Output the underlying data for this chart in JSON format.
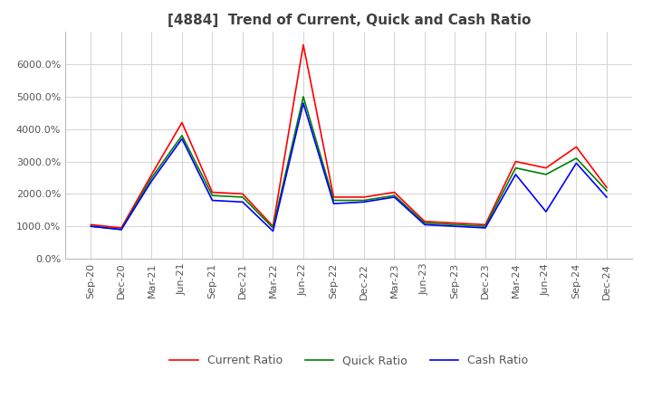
{
  "title": "[4884]  Trend of Current, Quick and Cash Ratio",
  "x_labels": [
    "Sep-20",
    "Dec-20",
    "Mar-21",
    "Jun-21",
    "Sep-21",
    "Dec-21",
    "Mar-22",
    "Jun-22",
    "Sep-22",
    "Dec-22",
    "Mar-23",
    "Jun-23",
    "Sep-23",
    "Dec-23",
    "Mar-24",
    "Jun-24",
    "Sep-24",
    "Dec-24"
  ],
  "current_ratio": [
    1050,
    950,
    2600,
    4200,
    2050,
    2000,
    1000,
    6600,
    1900,
    1900,
    2050,
    1150,
    1100,
    1050,
    3000,
    2800,
    3450,
    2200
  ],
  "quick_ratio": [
    1000,
    900,
    2500,
    3800,
    1950,
    1900,
    950,
    5000,
    1800,
    1800,
    1950,
    1100,
    1050,
    1000,
    2800,
    2600,
    3100,
    2100
  ],
  "cash_ratio": [
    1000,
    900,
    2400,
    3700,
    1800,
    1750,
    850,
    4800,
    1700,
    1750,
    1900,
    1050,
    1000,
    950,
    2600,
    1450,
    2950,
    1900
  ],
  "current_color": "#ff0000",
  "quick_color": "#008000",
  "cash_color": "#0000ff",
  "ylim": [
    0,
    7000
  ],
  "yticks": [
    0,
    1000,
    2000,
    3000,
    4000,
    5000,
    6000
  ],
  "background_color": "#ffffff",
  "grid_color": "#cccccc",
  "title_fontsize": 11,
  "tick_fontsize": 8,
  "legend_fontsize": 9
}
